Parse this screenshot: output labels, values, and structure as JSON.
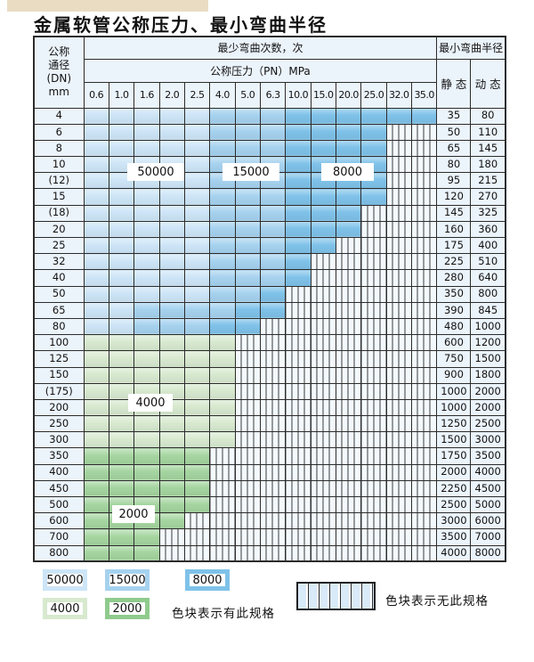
{
  "page": {
    "title": "金属软管公称压力、最小弯曲半径"
  },
  "table": {
    "header": {
      "dn_lines": [
        "公称",
        "通径",
        "(DN)",
        "mm"
      ],
      "bend_cycles": "最少弯曲次数，次",
      "pressure": "公称压力（PN）MPa",
      "min_radius": "最小弯曲半径",
      "static": "静 态",
      "dynamic": "动 态"
    }
  },
  "overlays": [
    {
      "value": "50000"
    },
    {
      "value": "15000"
    },
    {
      "value": "8000"
    },
    {
      "value": "4000"
    },
    {
      "value": "2000"
    }
  ],
  "legend": {
    "items": [
      {
        "value": "50000",
        "color": "#cde5f7"
      },
      {
        "value": "15000",
        "color": "#a6d2ef"
      },
      {
        "value": "8000",
        "color": "#7fc2e9"
      },
      {
        "value": "4000",
        "color": "#d7e9cf"
      },
      {
        "value": "2000",
        "color": "#a5d5a0"
      }
    ],
    "has_spec_label": "色块表示有此规格",
    "no_spec_label": "色块表示无此规格"
  },
  "colors": {
    "cycles_50000": "#cde5f7",
    "cycles_15000": "#a6d2ef",
    "cycles_8000": "#7fc2e9",
    "cycles_4000": "#d7e9cf",
    "cycles_2000": "#a5d5a0",
    "header_bg": "#ebf3fb",
    "grid_line": "#2c2c2c"
  },
  "chart_data": {
    "type": "table",
    "title": "金属软管公称压力、最小弯曲半径",
    "row_header": "公称通径(DN) mm",
    "column_group_header": "最少弯曲次数，次",
    "column_subgroup_header": "公称压力（PN）MPa",
    "right_group_header": "最小弯曲半径",
    "right_columns": [
      "静 态",
      "动 态"
    ],
    "pressure_columns_MPa": [
      "0.6",
      "1.0",
      "1.6",
      "2.0",
      "2.5",
      "4.0",
      "5.0",
      "6.3",
      "10.0",
      "15.0",
      "20.0",
      "25.0",
      "32.0",
      "35.0"
    ],
    "cell_code_legend": {
      "L": "50000次",
      "M": "15000次",
      "D": "8000次",
      "G": "4000次",
      "g": "2000次",
      "X": "无此规格"
    },
    "rows": [
      {
        "dn": "4",
        "cells": "LLLLLMMMDDDDDD",
        "static": "35",
        "dynamic": "80"
      },
      {
        "dn": "6",
        "cells": "LLLLLMMMDDDDXX",
        "static": "50",
        "dynamic": "110"
      },
      {
        "dn": "8",
        "cells": "LLLLLMMMDDDDXX",
        "static": "65",
        "dynamic": "145"
      },
      {
        "dn": "10",
        "cells": "LLLLLMMMDDDDXX",
        "static": "80",
        "dynamic": "180"
      },
      {
        "dn": "(12)",
        "cells": "LLLLLMMMDDDDXX",
        "static": "95",
        "dynamic": "215"
      },
      {
        "dn": "15",
        "cells": "LLLLLMMMDDDDXX",
        "static": "120",
        "dynamic": "270"
      },
      {
        "dn": "(18)",
        "cells": "LLLLLMMMDDDXXX",
        "static": "145",
        "dynamic": "325"
      },
      {
        "dn": "20",
        "cells": "LLLLLMMMDDDXXX",
        "static": "160",
        "dynamic": "360"
      },
      {
        "dn": "25",
        "cells": "LLLLLMMMDDXXXX",
        "static": "175",
        "dynamic": "400"
      },
      {
        "dn": "32",
        "cells": "LLLLLMMMDXXXXX",
        "static": "225",
        "dynamic": "510"
      },
      {
        "dn": "40",
        "cells": "LLLLLMMMDXXXXX",
        "static": "280",
        "dynamic": "640"
      },
      {
        "dn": "50",
        "cells": "LLLLLMMDXXXXXX",
        "static": "350",
        "dynamic": "800"
      },
      {
        "dn": "65",
        "cells": "LLMMMMDDXXXXXX",
        "static": "390",
        "dynamic": "845"
      },
      {
        "dn": "80",
        "cells": "LLMMMDDXXXXXXX",
        "static": "480",
        "dynamic": "1000"
      },
      {
        "dn": "100",
        "cells": "GGGGGGXXXXXXXX",
        "static": "600",
        "dynamic": "1200"
      },
      {
        "dn": "125",
        "cells": "GGGGGGXXXXXXXX",
        "static": "750",
        "dynamic": "1500"
      },
      {
        "dn": "150",
        "cells": "GGGGGGXXXXXXXX",
        "static": "900",
        "dynamic": "1800"
      },
      {
        "dn": "(175)",
        "cells": "GGGGGGXXXXXXXX",
        "static": "1000",
        "dynamic": "2000"
      },
      {
        "dn": "200",
        "cells": "GGGGGGXXXXXXXX",
        "static": "1000",
        "dynamic": "2000"
      },
      {
        "dn": "250",
        "cells": "GGGGGGXXXXXXXX",
        "static": "1250",
        "dynamic": "2500"
      },
      {
        "dn": "300",
        "cells": "GGGGGGXXXXXXXX",
        "static": "1500",
        "dynamic": "3000"
      },
      {
        "dn": "350",
        "cells": "gggggXXXXXXXXX",
        "static": "1750",
        "dynamic": "3500"
      },
      {
        "dn": "400",
        "cells": "gggggXXXXXXXXX",
        "static": "2000",
        "dynamic": "4000"
      },
      {
        "dn": "450",
        "cells": "gggggXXXXXXXXX",
        "static": "2250",
        "dynamic": "4500"
      },
      {
        "dn": "500",
        "cells": "gggggXXXXXXXXX",
        "static": "2500",
        "dynamic": "5000"
      },
      {
        "dn": "600",
        "cells": "ggggXXXXXXXXXX",
        "static": "3000",
        "dynamic": "6000"
      },
      {
        "dn": "700",
        "cells": "gggXXXXXXXXXXX",
        "static": "3500",
        "dynamic": "7000"
      },
      {
        "dn": "800",
        "cells": "gggXXXXXXXXXXX",
        "static": "4000",
        "dynamic": "8000"
      }
    ]
  }
}
